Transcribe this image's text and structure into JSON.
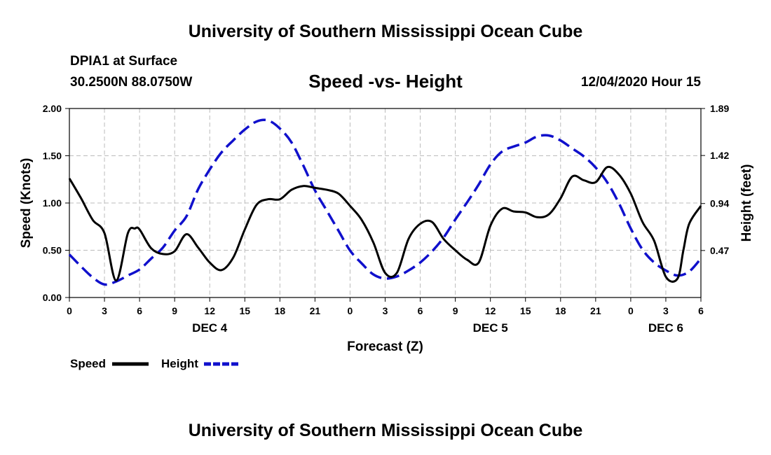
{
  "header": {
    "title": "University of Southern Mississippi Ocean Cube",
    "station": "DPIA1 at Surface",
    "coords": "30.2500N 88.0750W",
    "chart_title": "Speed -vs- Height",
    "datetime": "12/04/2020 Hour 15"
  },
  "footer": {
    "title": "University of Southern Mississippi Ocean Cube"
  },
  "colors": {
    "speed": "#000000",
    "height": "#1010cc",
    "grid": "#bbbbbb"
  },
  "chart_data": {
    "type": "line",
    "title": "Speed -vs- Height",
    "xlabel": "Forecast (Z)",
    "ylabel": "Speed (Knots)",
    "y2label": "Height (feet)",
    "x_range": [
      0,
      54
    ],
    "ylim": [
      0,
      2
    ],
    "y2lim": [
      0,
      1.89
    ],
    "grid": true,
    "x_ticks": [
      0,
      3,
      6,
      9,
      12,
      15,
      18,
      21,
      24,
      27,
      30,
      33,
      36,
      39,
      42,
      45,
      48,
      51,
      54
    ],
    "x_tick_labels": [
      "0",
      "3",
      "6",
      "9",
      "12",
      "15",
      "18",
      "21",
      "0",
      "3",
      "6",
      "9",
      "12",
      "15",
      "18",
      "21",
      "0",
      "3",
      "6"
    ],
    "y_ticks": [
      0,
      0.5,
      1,
      1.5,
      2
    ],
    "y_tick_labels": [
      "0.00",
      "0.50",
      "1.00",
      "1.50",
      "2.00"
    ],
    "y2_ticks": [
      0.47,
      0.94,
      1.42,
      1.89
    ],
    "y2_tick_labels": [
      "0.47",
      "0.94",
      "1.42",
      "1.89"
    ],
    "day_labels": [
      {
        "label": "DEC 4",
        "x": 12
      },
      {
        "label": "DEC 5",
        "x": 36
      },
      {
        "label": "DEC 6",
        "x": 51
      }
    ],
    "series": [
      {
        "name": "Speed",
        "axis": "left",
        "style": "solid",
        "x": [
          0,
          1,
          2,
          3,
          4,
          5,
          5.6,
          6,
          7,
          8,
          9,
          10,
          11,
          12,
          13,
          14,
          15,
          16,
          17,
          18,
          19,
          20,
          21,
          22,
          23,
          24,
          25,
          26,
          27,
          28,
          29,
          30,
          31,
          32,
          33,
          34,
          35,
          36,
          37,
          38,
          39,
          40,
          41,
          42,
          43,
          44,
          45,
          46,
          47,
          48,
          49,
          50,
          51,
          52,
          52.5,
          53,
          54
        ],
        "values": [
          1.26,
          1.05,
          0.82,
          0.68,
          0.18,
          0.68,
          0.73,
          0.72,
          0.52,
          0.46,
          0.49,
          0.67,
          0.53,
          0.37,
          0.29,
          0.42,
          0.72,
          0.98,
          1.04,
          1.04,
          1.14,
          1.18,
          1.16,
          1.14,
          1.1,
          0.97,
          0.82,
          0.58,
          0.26,
          0.26,
          0.62,
          0.78,
          0.8,
          0.62,
          0.5,
          0.4,
          0.37,
          0.76,
          0.94,
          0.91,
          0.9,
          0.85,
          0.88,
          1.05,
          1.28,
          1.24,
          1.22,
          1.38,
          1.3,
          1.1,
          0.8,
          0.6,
          0.22,
          0.2,
          0.5,
          0.78,
          0.97
        ]
      },
      {
        "name": "Height",
        "axis": "right",
        "style": "dashed",
        "x": [
          0,
          1,
          2,
          3,
          4,
          5,
          6,
          7,
          8,
          9,
          10,
          11,
          12,
          13,
          14,
          15,
          16,
          17,
          18,
          19,
          20,
          21,
          22,
          23,
          24,
          25,
          26,
          27,
          28,
          29,
          30,
          31,
          32,
          33,
          34,
          35,
          36,
          37,
          38,
          39,
          40,
          41,
          42,
          43,
          44,
          45,
          46,
          47,
          48,
          49,
          50,
          51,
          52,
          53,
          54
        ],
        "values": [
          0.43,
          0.31,
          0.2,
          0.13,
          0.16,
          0.22,
          0.28,
          0.39,
          0.5,
          0.67,
          0.81,
          1.08,
          1.28,
          1.45,
          1.57,
          1.68,
          1.76,
          1.77,
          1.69,
          1.55,
          1.32,
          1.07,
          0.87,
          0.67,
          0.47,
          0.34,
          0.23,
          0.19,
          0.21,
          0.27,
          0.35,
          0.46,
          0.6,
          0.78,
          0.95,
          1.13,
          1.33,
          1.46,
          1.51,
          1.55,
          1.61,
          1.62,
          1.57,
          1.49,
          1.41,
          1.3,
          1.15,
          0.94,
          0.69,
          0.48,
          0.35,
          0.27,
          0.22,
          0.26,
          0.39
        ]
      }
    ]
  }
}
